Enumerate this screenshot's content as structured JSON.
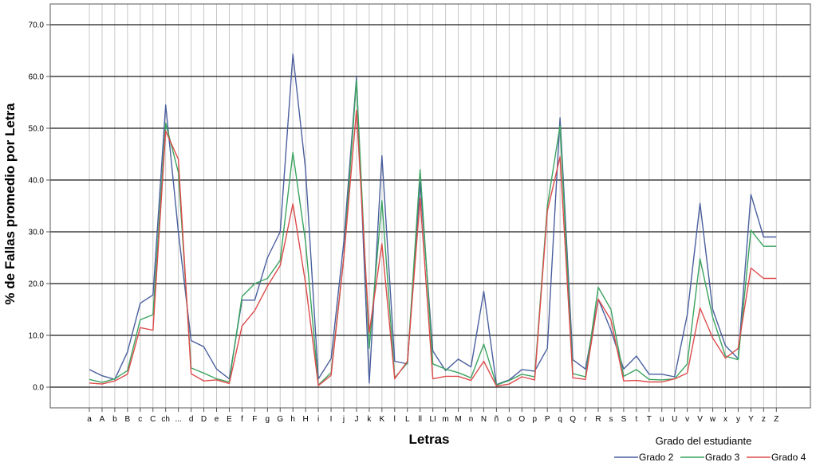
{
  "chart_data": {
    "type": "line",
    "xlabel": "Letras",
    "ylabel": "% de Fallas promedio por Letra",
    "ylim": [
      0,
      70
    ],
    "yticks": [
      "0.0",
      "10.0",
      "20.0",
      "30.0",
      "40.0",
      "50.0",
      "60.0",
      "70.0"
    ],
    "grid": true,
    "legend_position": "bottom-right",
    "legend_title": "Grado del estudiante",
    "categories": [
      "a",
      "A",
      "b",
      "B",
      "c",
      "C",
      "ch",
      "...",
      "d",
      "D",
      "e",
      "E",
      "f",
      "F",
      "g",
      "G",
      "h",
      "H",
      "i",
      "I",
      "j",
      "J",
      "k",
      "K",
      "l",
      "L",
      "ll",
      "LI",
      "m",
      "M",
      "n",
      "N",
      "ñ",
      "o",
      "O",
      "p",
      "P",
      "q",
      "Q",
      "r",
      "R",
      "s",
      "S",
      "t",
      "T",
      "u",
      "U",
      "v",
      "V",
      "w",
      "x",
      "y",
      "Y",
      "z",
      "Z"
    ],
    "category_labels": [
      "a",
      "A",
      "b",
      "B",
      "c",
      "C",
      "ch",
      "...",
      "d",
      "D",
      "e",
      "E",
      "f",
      "F",
      "g",
      "G",
      "h",
      "H",
      "i",
      "I",
      "j",
      "J",
      "k",
      "K",
      "l",
      "L",
      "ll",
      "LI",
      "m",
      "M",
      "n",
      "N",
      "ñ",
      "o",
      "O",
      "p",
      "P",
      "q",
      "Q",
      "r",
      "R",
      "s",
      "S",
      "t",
      "T",
      "u",
      "U",
      "v",
      "V",
      "w",
      "x",
      "y",
      "Y",
      "z",
      "Z"
    ],
    "series": [
      {
        "name": "Grado 2",
        "color": "#4a5f9e",
        "values": [
          3.4,
          2.2,
          1.5,
          6.8,
          16.2,
          17.8,
          54.5,
          30.0,
          9.0,
          7.8,
          3.5,
          1.6,
          16.8,
          16.8,
          25.0,
          30.0,
          64.3,
          42.0,
          1.6,
          5.5,
          28.0,
          59.8,
          0.8,
          44.7,
          5.0,
          4.5,
          39.5,
          7.0,
          3.2,
          5.4,
          3.9,
          18.5,
          0.5,
          1.4,
          3.4,
          3.1,
          7.5,
          52.0,
          5.3,
          3.5,
          17.0,
          11.0,
          3.5,
          6.0,
          2.5,
          2.5,
          2.0,
          14.0,
          35.5,
          15.0,
          8.0,
          5.5,
          37.2,
          29.0,
          29.0
        ]
      },
      {
        "name": "Grado 3",
        "color": "#3aa35f",
        "values": [
          1.5,
          0.9,
          1.6,
          3.2,
          13.0,
          14.0,
          51.0,
          41.5,
          3.7,
          2.7,
          1.6,
          1.0,
          17.5,
          20.0,
          21.0,
          24.5,
          45.3,
          28.0,
          0.4,
          2.8,
          25.0,
          59.3,
          7.5,
          36.0,
          1.8,
          4.7,
          42.0,
          4.5,
          3.5,
          2.8,
          1.8,
          8.3,
          0.4,
          1.3,
          2.5,
          2.0,
          35.0,
          50.5,
          2.6,
          2.0,
          19.3,
          15.0,
          2.1,
          3.4,
          1.5,
          1.4,
          1.6,
          4.5,
          24.8,
          13.5,
          6.0,
          5.3,
          30.3,
          27.2,
          27.2
        ]
      },
      {
        "name": "Grado 4",
        "color": "#dd4b4b",
        "values": [
          0.8,
          0.6,
          1.2,
          2.5,
          11.5,
          11.0,
          49.5,
          44.0,
          2.6,
          1.2,
          1.4,
          0.7,
          11.8,
          14.8,
          19.5,
          23.5,
          35.4,
          20.0,
          0.3,
          2.3,
          25.0,
          53.5,
          10.5,
          27.7,
          1.6,
          5.0,
          36.5,
          1.6,
          2.1,
          2.1,
          1.3,
          5.0,
          0.2,
          0.6,
          2.0,
          1.4,
          34.0,
          44.5,
          1.8,
          1.5,
          17.0,
          13.0,
          1.2,
          1.3,
          1.0,
          1.0,
          1.6,
          2.7,
          15.3,
          9.5,
          5.6,
          7.5,
          23.0,
          21.0,
          21.0
        ]
      }
    ]
  }
}
